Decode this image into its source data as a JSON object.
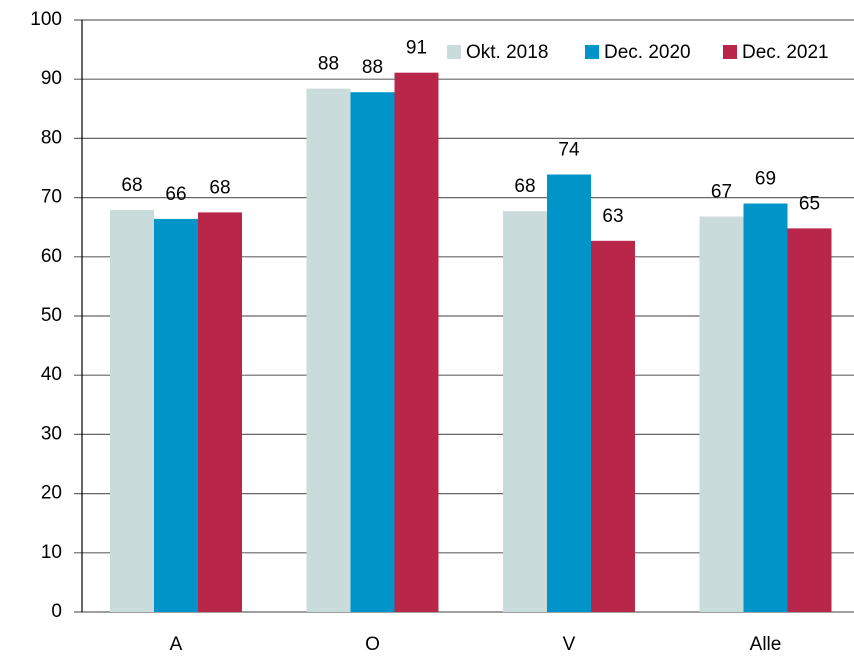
{
  "chart_data": {
    "type": "bar",
    "categories": [
      "A",
      "O",
      "V",
      "Alle"
    ],
    "series": [
      {
        "name": "Okt. 2018",
        "color": "#c9dbdb",
        "values": [
          67.9,
          88.4,
          67.7,
          66.8
        ],
        "value_labels": [
          "68",
          "88",
          "68",
          "67"
        ]
      },
      {
        "name": "Dec. 2020",
        "color": "#0094c8",
        "values": [
          66.4,
          87.8,
          73.9,
          69.0
        ],
        "value_labels": [
          "66",
          "88",
          "74",
          "69"
        ]
      },
      {
        "name": "Dec. 2021",
        "color": "#b8264a",
        "values": [
          67.5,
          91.1,
          62.7,
          64.8
        ],
        "value_labels": [
          "68",
          "91",
          "63",
          "65"
        ]
      }
    ],
    "ylim": [
      0,
      100
    ],
    "yticks": [
      0,
      10,
      20,
      30,
      40,
      50,
      60,
      70,
      80,
      90,
      100
    ],
    "grid": true,
    "legend": "top-right"
  }
}
